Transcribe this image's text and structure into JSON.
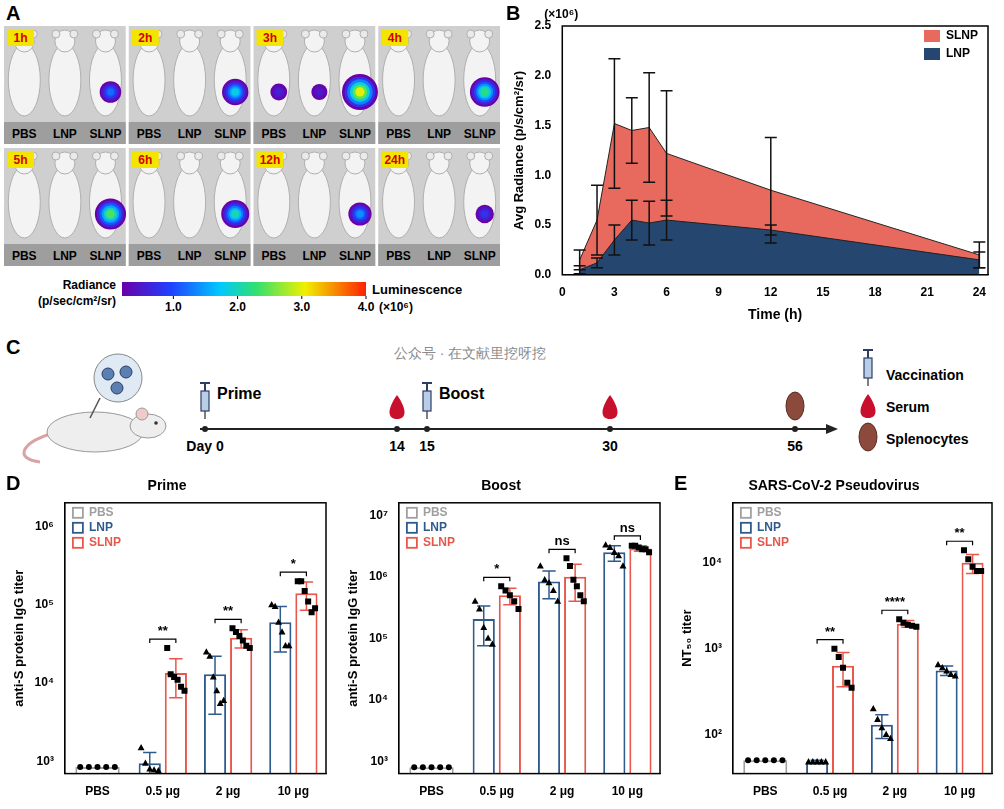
{
  "panel_a": {
    "panel": "A",
    "mice": [
      "PBS",
      "LNP",
      "SLNP"
    ],
    "tiles": [
      {
        "time": "1h",
        "radiance": [
          0,
          0,
          1.2
        ]
      },
      {
        "time": "2h",
        "radiance": [
          0,
          0,
          1.8
        ]
      },
      {
        "time": "3h",
        "radiance": [
          0.6,
          0.5,
          3.0
        ]
      },
      {
        "time": "4h",
        "radiance": [
          0,
          0,
          2.2
        ]
      },
      {
        "time": "5h",
        "radiance": [
          0,
          0,
          2.4
        ]
      },
      {
        "time": "6h",
        "radiance": [
          0,
          0,
          2.0
        ]
      },
      {
        "time": "12h",
        "radiance": [
          0,
          0,
          1.4
        ]
      },
      {
        "time": "24h",
        "radiance": [
          0,
          0,
          0.8
        ]
      }
    ],
    "colorbar": {
      "title": [
        "Radiance",
        "(p/sec/cm²/sr)"
      ],
      "side_label": "Luminescence",
      "range": [
        0.2,
        4.0
      ],
      "ticks": [
        {
          "value": 1,
          "label": "1.0"
        },
        {
          "value": 2,
          "label": "2.0"
        },
        {
          "value": 3,
          "label": "3.0"
        },
        {
          "value": 4,
          "label": "4.0"
        }
      ],
      "multiplier": "(×10⁶)"
    }
  },
  "panel_c": {
    "panel": "C",
    "events": [
      {
        "label": "Day 0",
        "icon": "Vaccination",
        "text": "Prime"
      },
      {
        "label": "14",
        "icon": "Serum"
      },
      {
        "label": "15",
        "icon": "Vaccination",
        "text": "Boost"
      },
      {
        "label": "30",
        "icon": "Serum"
      },
      {
        "label": "56",
        "icon": "Splenocytes"
      }
    ],
    "legend": [
      "Vaccination",
      "Serum",
      "Splenocytes"
    ]
  },
  "watermark": "公众号 · 在文献里挖呀挖",
  "chart_data": [
    {
      "panel": "B",
      "type": "area",
      "x": [
        1,
        2,
        3,
        4,
        5,
        6,
        12,
        24
      ],
      "series": [
        {
          "name": "SLNP",
          "color": "#e8695e",
          "values": [
            0.15,
            0.55,
            1.52,
            1.45,
            1.48,
            1.22,
            0.85,
            0.2
          ],
          "errors": [
            0.1,
            0.35,
            0.65,
            0.33,
            0.55,
            0.63,
            0.53,
            0.13
          ]
        },
        {
          "name": "LNP",
          "color": "#25476f",
          "values": [
            0.05,
            0.12,
            0.35,
            0.55,
            0.52,
            0.55,
            0.45,
            0.15
          ],
          "errors": [
            0.04,
            0.05,
            0.15,
            0.2,
            0.22,
            0.2,
            0.05,
            0.08
          ]
        }
      ],
      "xlim": [
        0,
        24.5
      ],
      "xticks": [
        0,
        3,
        6,
        9,
        12,
        15,
        18,
        21,
        24
      ],
      "ylim": [
        0,
        2.5
      ],
      "yticks": [
        {
          "value": 0,
          "label": "0.0"
        },
        {
          "value": 0.5,
          "label": "0.5"
        },
        {
          "value": 1,
          "label": "1.0"
        },
        {
          "value": 1.5,
          "label": "1.5"
        },
        {
          "value": 2,
          "label": "2.0"
        },
        {
          "value": 2.5,
          "label": "2.5"
        }
      ],
      "y_multiplier": "(×10⁶)",
      "x_label": "Time (h)",
      "y_label": "Avg Radiance (p/s/cm²/sr)",
      "legend": "top-right",
      "grid": false
    },
    {
      "panel": "D",
      "type": "bar",
      "title": "Prime",
      "categories": [
        "PBS",
        "0.5 μg",
        "2 μg",
        "10 μg"
      ],
      "series": [
        {
          "name": "PBS",
          "color": "#a0a0a0",
          "marker": "circle",
          "values": [
            850,
            null,
            null,
            null
          ],
          "points": [
            [
              850,
              850,
              850,
              850,
              850
            ],
            null,
            null,
            null
          ]
        },
        {
          "name": "LNP",
          "color": "#2f5a8c",
          "marker": "triangle",
          "values": [
            null,
            950,
            13000,
            60000
          ],
          "errors": [
            null,
            350,
            9000,
            35000
          ],
          "points": [
            null,
            [
              1500,
              950,
              800,
              780,
              760
            ],
            [
              25000,
              22000,
              12000,
              8000,
              5500,
              6000
            ],
            [
              100000,
              95000,
              60000,
              45000,
              30000,
              30000
            ]
          ]
        },
        {
          "name": "SLNP",
          "color": "#e8574a",
          "marker": "square",
          "values": [
            null,
            13500,
            38000,
            140000
          ],
          "errors": [
            null,
            7000,
            10000,
            55000
          ],
          "points": [
            null,
            [
              28000,
              13000,
              12000,
              11000,
              9000,
              8000
            ],
            [
              50000,
              45000,
              40000,
              35000,
              30000,
              28000
            ],
            [
              200000,
              200000,
              150000,
              110000,
              80000,
              90000
            ]
          ]
        }
      ],
      "significance": [
        null,
        "**",
        "**",
        "*"
      ],
      "log": "y",
      "ylim": [
        700,
        2000000
      ],
      "yticks": [
        {
          "value": 1000,
          "label": "10³"
        },
        {
          "value": 10000,
          "label": "10⁴"
        },
        {
          "value": 100000,
          "label": "10⁵"
        },
        {
          "value": 1000000,
          "label": "10⁶"
        }
      ],
      "y_label": "anti-S protein IgG titer",
      "legend": "top-left",
      "grid": false
    },
    {
      "type": "bar",
      "title": "Boost",
      "categories": [
        "PBS",
        "0.5 μg",
        "2 μg",
        "10 μg"
      ],
      "series": [
        {
          "name": "PBS",
          "color": "#a0a0a0",
          "marker": "circle",
          "values": [
            800,
            null,
            null,
            null
          ],
          "points": [
            [
              800,
              800,
              800,
              800,
              800
            ],
            null,
            null,
            null
          ]
        },
        {
          "name": "LNP",
          "color": "#2f5a8c",
          "marker": "triangle",
          "values": [
            null,
            206000,
            840000,
            2500000
          ],
          "errors": [
            null,
            130000,
            400000,
            700000
          ],
          "points": [
            null,
            [
              400000,
              300000,
              150000,
              100000,
              80000
            ],
            [
              1500000,
              900000,
              800000,
              600000,
              400000
            ],
            [
              3300000,
              3000000,
              2500000,
              2200000,
              1500000
            ]
          ]
        },
        {
          "name": "SLNP",
          "color": "#e8574a",
          "marker": "square",
          "values": [
            null,
            500000,
            1000000,
            2900000
          ],
          "errors": [
            null,
            150000,
            600000,
            300000
          ],
          "points": [
            null,
            [
              700000,
              600000,
              500000,
              400000,
              300000
            ],
            [
              2000000,
              1500000,
              900000,
              700000,
              500000,
              400000
            ],
            [
              3200000,
              3200000,
              3000000,
              2800000,
              2800000,
              2500000
            ]
          ]
        }
      ],
      "significance": [
        null,
        "*",
        "ns",
        "ns"
      ],
      "log": "y",
      "ylim": [
        630,
        16000000
      ],
      "yticks": [
        {
          "value": 1000,
          "label": "10³"
        },
        {
          "value": 10000,
          "label": "10⁴"
        },
        {
          "value": 100000,
          "label": "10⁵"
        },
        {
          "value": 1000000,
          "label": "10⁶"
        },
        {
          "value": 10000000,
          "label": "10⁷"
        }
      ],
      "y_label": "anti-S protein IgG titer",
      "legend": "top-left",
      "grid": false
    },
    {
      "panel": "E",
      "type": "bar",
      "title": "SARS-CoV-2 Pseudovirus",
      "categories": [
        "PBS",
        "0.5 μg",
        "2 μg",
        "10 μg"
      ],
      "series": [
        {
          "name": "PBS",
          "color": "#a0a0a0",
          "marker": "circle",
          "values": [
            50,
            null,
            null,
            null
          ],
          "points": [
            [
              50,
              50,
              50,
              50,
              50
            ],
            null,
            null,
            null
          ]
        },
        {
          "name": "LNP",
          "color": "#2f5a8c",
          "marker": "triangle",
          "values": [
            null,
            48,
            130,
            556
          ],
          "errors": [
            null,
            2,
            40,
            70
          ],
          "points": [
            null,
            [
              48,
              48,
              48,
              48,
              48
            ],
            [
              200,
              150,
              120,
              100,
              90
            ],
            [
              650,
              600,
              550,
              500,
              480
            ]
          ]
        },
        {
          "name": "SLNP",
          "color": "#e8574a",
          "marker": "square",
          "values": [
            null,
            630,
            1950,
            10000
          ],
          "errors": [
            null,
            270,
            170,
            2500
          ],
          "points": [
            null,
            [
              1000,
              800,
              600,
              400,
              350
            ],
            [
              2200,
              2000,
              1900,
              1850,
              1800
            ],
            [
              14000,
              11000,
              9000,
              8000,
              8000
            ]
          ]
        }
      ],
      "significance": [
        null,
        "**",
        "****",
        "**"
      ],
      "log": "y",
      "ylim": [
        35,
        50000
      ],
      "yticks": [
        {
          "value": 100,
          "label": "10²"
        },
        {
          "value": 1000,
          "label": "10³"
        },
        {
          "value": 10000,
          "label": "10⁴"
        }
      ],
      "y_label": "NT₅₀ titer",
      "legend": "top-left",
      "grid": false
    }
  ]
}
